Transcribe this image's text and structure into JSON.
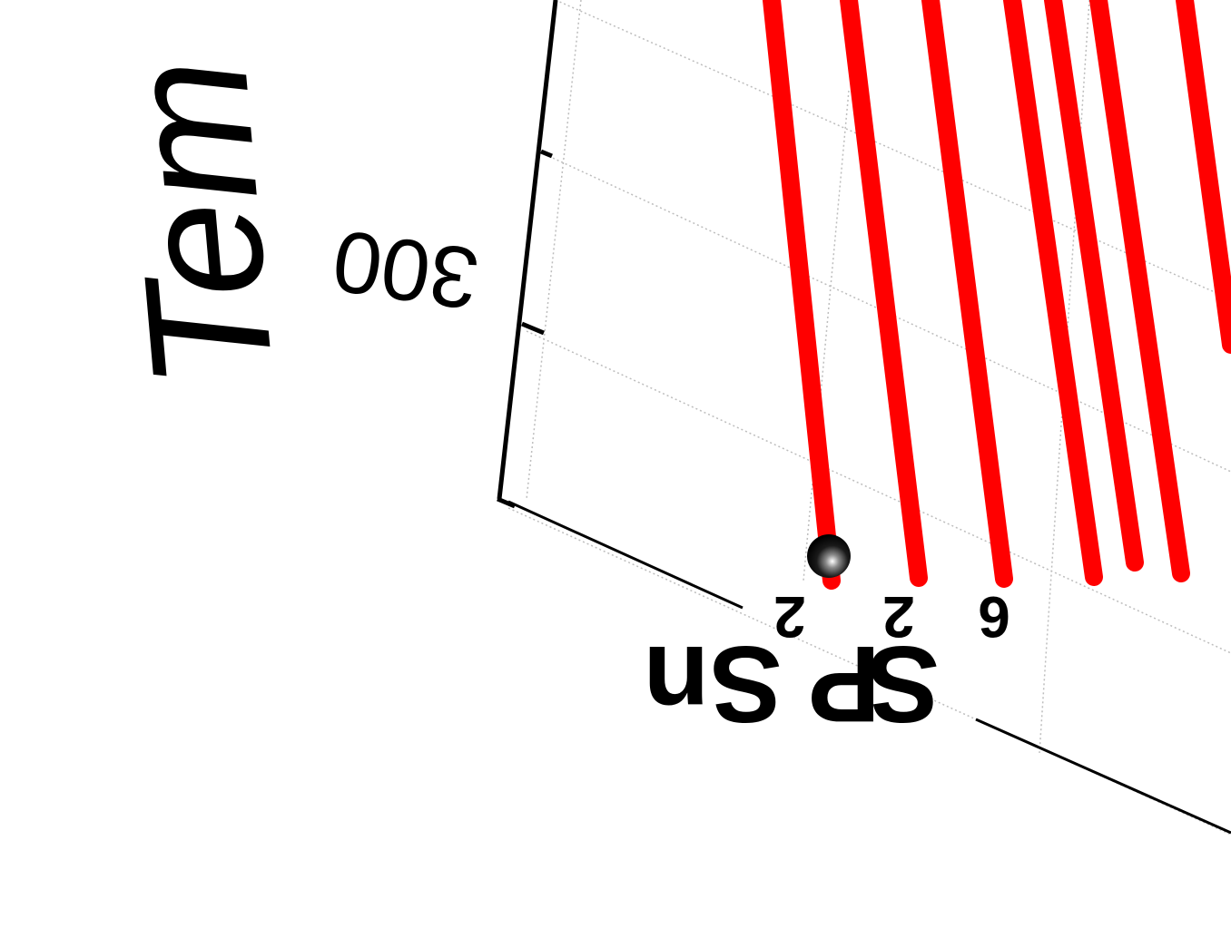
{
  "chart_data": {
    "type": "line",
    "view": "3d",
    "ylabel": "Tem",
    "ytick_labels": [
      "300"
    ],
    "x_category_label": {
      "base": "Sn",
      "sub1": "2",
      "mid": "P",
      "sub2": "2",
      "end": "S",
      "sub3": "6"
    },
    "series": [
      {
        "name": "",
        "color": "#ff0000",
        "marker": "sphere"
      },
      {
        "name": "",
        "color": "#ff0000"
      },
      {
        "name": "",
        "color": "#ff0000"
      },
      {
        "name": "",
        "color": "#ff0000"
      },
      {
        "name": "",
        "color": "#ff0000"
      },
      {
        "name": "",
        "color": "#ff0000"
      },
      {
        "name": "",
        "color": "#ff0000"
      }
    ],
    "grid": true,
    "colors": {
      "lines": "#ff0000",
      "marker": "#111111",
      "axes": "#000000",
      "grid": "#bdbdbd"
    }
  }
}
